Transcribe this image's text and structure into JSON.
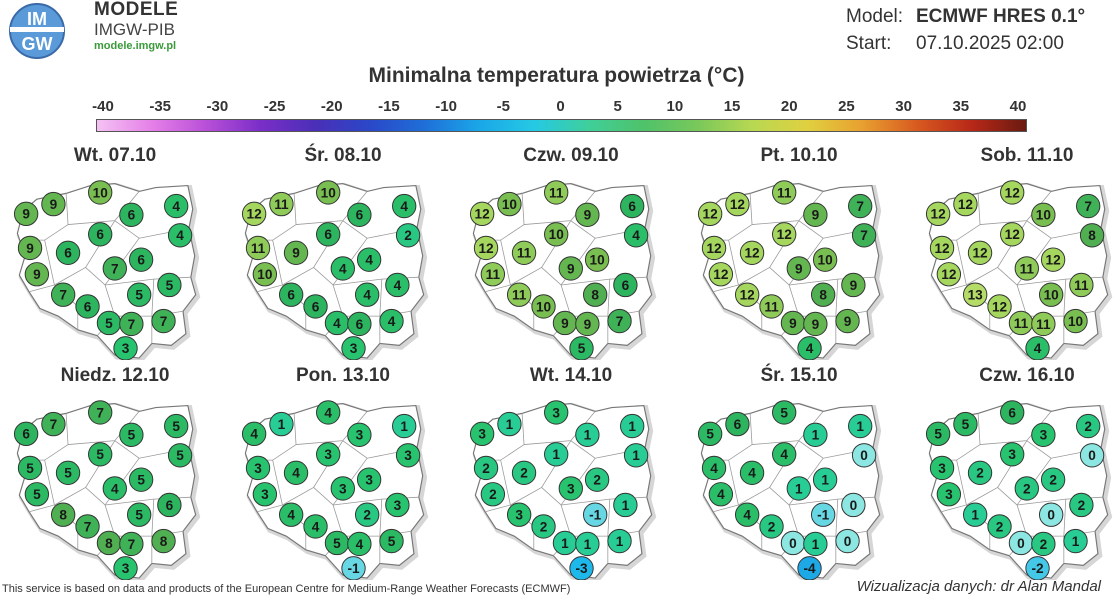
{
  "header": {
    "brand_title": "MODELE",
    "brand_sub": "IMGW-PIB",
    "brand_url": "modele.imgw.pl",
    "logo_text_top": "IM",
    "logo_text_bottom": "GW",
    "model_label": "Model:",
    "model_value": "ECMWF HRES 0.1°",
    "start_label": "Start:",
    "start_value": "07.10.2025 02:00"
  },
  "map_title": "Minimalna temperatura powietrza (°C)",
  "scale": {
    "labels": [
      "-40",
      "-35",
      "-30",
      "-25",
      "-20",
      "-15",
      "-10",
      "-5",
      "0",
      "5",
      "10",
      "15",
      "20",
      "25",
      "30",
      "35",
      "40"
    ],
    "gradient_stops": [
      "#f4c2f2",
      "#e580e8",
      "#b84fd8",
      "#7a2ec8",
      "#4a2fb8",
      "#2a48c8",
      "#1f6fd8",
      "#1aa7e8",
      "#25c9e4",
      "#3fcf9a",
      "#4fc26a",
      "#7ac85a",
      "#b8d852",
      "#e0d040",
      "#e8a030",
      "#d85a20",
      "#b82818",
      "#6a1a10"
    ]
  },
  "station_layout": [
    "W1",
    "W2",
    "N1",
    "N2",
    "NE1",
    "W3",
    "CW",
    "C1",
    "NE2",
    "W4",
    "C2",
    "C3",
    "W5",
    "SW",
    "E1",
    "S1",
    "SE1",
    "S2",
    "SE2",
    "S3"
  ],
  "panels": [
    {
      "day": "Wt. 07.10",
      "temps": [
        9,
        9,
        10,
        6,
        4,
        9,
        6,
        6,
        4,
        9,
        7,
        6,
        7,
        6,
        5,
        5,
        5,
        7,
        7,
        3
      ]
    },
    {
      "day": "Śr. 08.10",
      "temps": [
        12,
        11,
        10,
        6,
        4,
        11,
        9,
        6,
        2,
        10,
        4,
        4,
        6,
        6,
        4,
        4,
        4,
        6,
        4,
        3
      ]
    },
    {
      "day": "Czw. 09.10",
      "temps": [
        12,
        10,
        11,
        9,
        6,
        12,
        11,
        10,
        4,
        11,
        9,
        10,
        11,
        10,
        8,
        6,
        9,
        9,
        7,
        5
      ]
    },
    {
      "day": "Pt. 10.10",
      "temps": [
        12,
        12,
        11,
        9,
        7,
        12,
        12,
        12,
        7,
        12,
        9,
        10,
        12,
        11,
        8,
        9,
        9,
        9,
        9,
        4
      ]
    },
    {
      "day": "Sob. 11.10",
      "temps": [
        12,
        12,
        12,
        10,
        7,
        12,
        12,
        12,
        8,
        12,
        11,
        12,
        13,
        12,
        10,
        11,
        11,
        11,
        10,
        4
      ]
    },
    {
      "day": "Niedz. 12.10",
      "temps": [
        6,
        7,
        7,
        5,
        5,
        5,
        5,
        5,
        5,
        5,
        4,
        5,
        8,
        7,
        5,
        6,
        8,
        7,
        8,
        3
      ]
    },
    {
      "day": "Pon. 13.10",
      "temps": [
        4,
        1,
        4,
        3,
        1,
        3,
        4,
        3,
        3,
        3,
        3,
        3,
        4,
        4,
        2,
        3,
        5,
        4,
        5,
        -1
      ]
    },
    {
      "day": "Wt. 14.10",
      "temps": [
        3,
        1,
        3,
        1,
        1,
        2,
        2,
        1,
        1,
        2,
        3,
        2,
        3,
        2,
        -1,
        1,
        1,
        1,
        1,
        -3
      ]
    },
    {
      "day": "Śr. 15.10",
      "temps": [
        5,
        6,
        5,
        1,
        1,
        4,
        4,
        4,
        0,
        4,
        1,
        1,
        4,
        2,
        -1,
        0,
        0,
        1,
        0,
        -4
      ]
    },
    {
      "day": "Czw. 16.10",
      "temps": [
        5,
        5,
        6,
        3,
        2,
        3,
        2,
        3,
        0,
        3,
        2,
        2,
        1,
        2,
        0,
        2,
        0,
        2,
        1,
        -2
      ]
    }
  ],
  "footer": {
    "left": "This service is based on data and products of the European Centre for Medium-Range Weather Forecasts (ECMWF)",
    "right": "Wizualizacja danych: dr Alan Mandal"
  }
}
